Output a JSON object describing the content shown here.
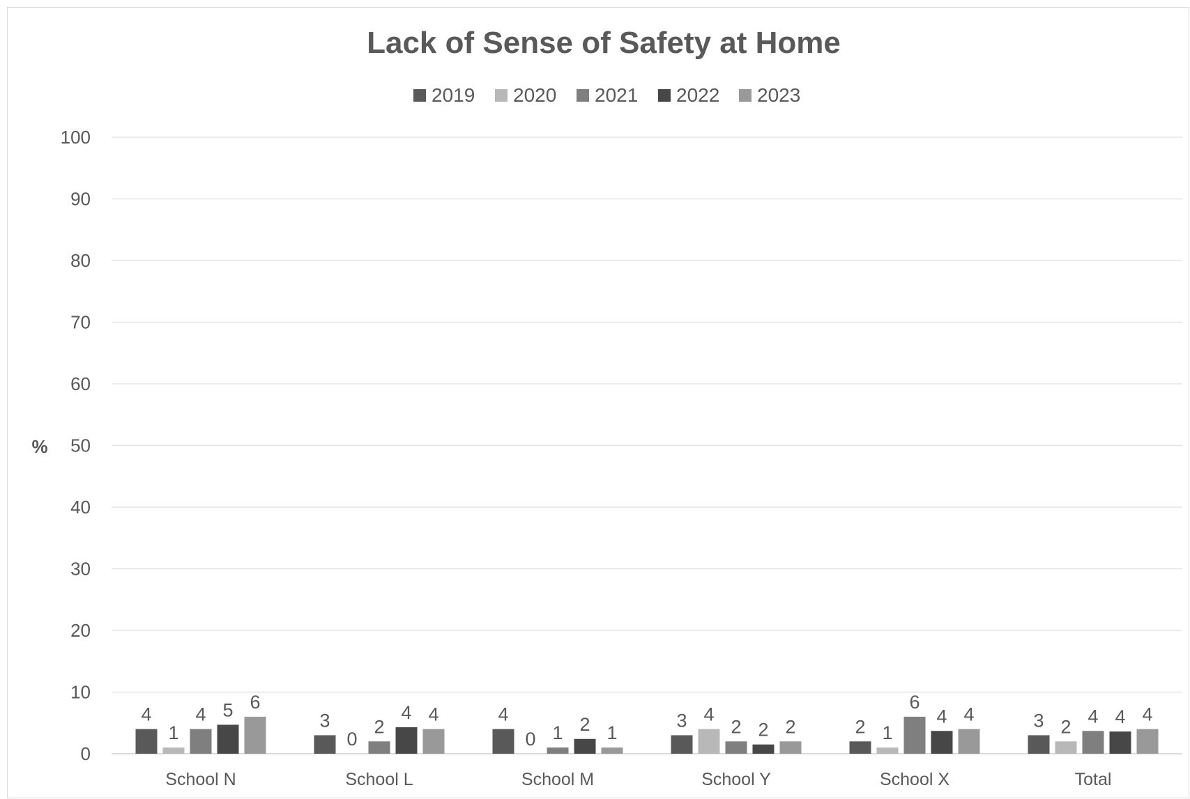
{
  "chart_data": {
    "type": "bar",
    "title": "Lack of Sense of Safety at Home",
    "xlabel": "",
    "ylabel": "%",
    "ylim": [
      0,
      100
    ],
    "yticks": [
      0,
      10,
      20,
      30,
      40,
      50,
      60,
      70,
      80,
      90,
      100
    ],
    "grid": true,
    "legend_position": "top",
    "categories": [
      "School N",
      "School L",
      "School M",
      "School Y",
      "School X",
      "Total"
    ],
    "series": [
      {
        "name": "2019",
        "color": "#595959",
        "values": [
          4,
          3,
          4,
          3,
          2,
          3
        ],
        "labels": [
          "4",
          "3",
          "4",
          "3",
          "2",
          "3"
        ]
      },
      {
        "name": "2020",
        "color": "#b8b8b8",
        "values": [
          1,
          0,
          0,
          4,
          1,
          2
        ],
        "labels": [
          "1",
          "0",
          "0",
          "4",
          "1",
          "2"
        ]
      },
      {
        "name": "2021",
        "color": "#7f7f7f",
        "values": [
          4,
          2,
          1,
          2,
          6,
          3.7
        ],
        "labels": [
          "4",
          "2",
          "1",
          "2",
          "6",
          "4"
        ]
      },
      {
        "name": "2022",
        "color": "#474747",
        "values": [
          4.7,
          4.3,
          2.4,
          1.5,
          3.7,
          3.6
        ],
        "labels": [
          "5",
          "4",
          "2",
          "2",
          "4",
          "4"
        ]
      },
      {
        "name": "2023",
        "color": "#999999",
        "values": [
          6,
          4,
          1,
          2,
          4,
          4
        ],
        "labels": [
          "6",
          "4",
          "1",
          "2",
          "4",
          "4"
        ]
      }
    ]
  }
}
